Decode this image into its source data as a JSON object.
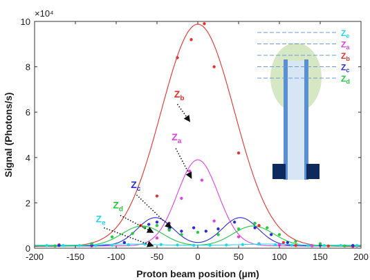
{
  "chart_data": {
    "type": "line",
    "xlabel": "Proton beam position (µm)",
    "ylabel": "Signal (Photons/s)",
    "y_exponent_label": "×10⁴",
    "xlim": [
      -200,
      200
    ],
    "ylim": [
      0,
      100000
    ],
    "x_ticks": [
      -200,
      -150,
      -100,
      -50,
      0,
      50,
      100,
      150,
      200
    ],
    "x_tick_labels": [
      "-200",
      "-150",
      "-100",
      "-50",
      "0",
      "50",
      "100",
      "150",
      "200"
    ],
    "y_ticks": [
      0,
      20000,
      40000,
      60000,
      80000,
      100000
    ],
    "y_tick_labels": [
      "0",
      "2",
      "4",
      "6",
      "8",
      "10"
    ],
    "grid": false,
    "series": [
      {
        "name": "Z_b",
        "label_main": "Z",
        "label_sub": "b",
        "color": "#e8302a",
        "fit": {
          "kind": "gauss",
          "mu": 0,
          "sigma": 45,
          "amp": 98000,
          "offset": 800
        },
        "points": [
          [
            -170,
            1500
          ],
          [
            -130,
            1200
          ],
          [
            -90,
            2500
          ],
          [
            -70,
            10000
          ],
          [
            -50,
            23000
          ],
          [
            -25,
            84000
          ],
          [
            -8,
            92000
          ],
          [
            8,
            99000
          ],
          [
            20,
            80000
          ],
          [
            50,
            42000
          ],
          [
            75,
            10000
          ],
          [
            105,
            2500
          ],
          [
            120,
            1200
          ],
          [
            160,
            1000
          ],
          [
            190,
            800
          ]
        ]
      },
      {
        "name": "Z_a",
        "label_main": "Z",
        "label_sub": "a",
        "color": "#e040e0",
        "fit": {
          "kind": "gauss",
          "mu": 0,
          "sigma": 25,
          "amp": 38000,
          "offset": 1000
        },
        "points": [
          [
            -175,
            1000
          ],
          [
            -130,
            1000
          ],
          [
            -85,
            1500
          ],
          [
            -50,
            4500
          ],
          [
            -35,
            11000
          ],
          [
            -20,
            22000
          ],
          [
            -10,
            34000
          ],
          [
            5,
            30000
          ],
          [
            20,
            12000
          ],
          [
            50,
            5000
          ],
          [
            75,
            2000
          ],
          [
            100,
            1500
          ],
          [
            140,
            1000
          ],
          [
            195,
            1000
          ]
        ]
      },
      {
        "name": "Z_c",
        "label_main": "Z",
        "label_sub": "c",
        "color": "#2a2ad6",
        "fit": {
          "kind": "double",
          "mu": 52,
          "sigma": 22,
          "amp": 12500,
          "offset": 1000
        },
        "points": [
          [
            -170,
            1200
          ],
          [
            -130,
            1300
          ],
          [
            -90,
            2500
          ],
          [
            -60,
            10500
          ],
          [
            -50,
            11500
          ],
          [
            -35,
            8500
          ],
          [
            -20,
            7500
          ],
          [
            -5,
            9000
          ],
          [
            10,
            7500
          ],
          [
            25,
            8500
          ],
          [
            45,
            11500
          ],
          [
            70,
            9000
          ],
          [
            90,
            6000
          ],
          [
            110,
            2500
          ],
          [
            150,
            1300
          ],
          [
            190,
            1200
          ]
        ]
      },
      {
        "name": "Z_d",
        "label_main": "Z",
        "label_sub": "d",
        "color": "#22c742",
        "fit": {
          "kind": "double",
          "mu": 68,
          "sigma": 25,
          "amp": 8800,
          "offset": 1000
        },
        "points": [
          [
            -175,
            1000
          ],
          [
            -130,
            2000
          ],
          [
            -105,
            5000
          ],
          [
            -80,
            6500
          ],
          [
            -65,
            9000
          ],
          [
            -50,
            10000
          ],
          [
            -35,
            8000
          ],
          [
            -20,
            6000
          ],
          [
            0,
            7000
          ],
          [
            25,
            6000
          ],
          [
            50,
            8500
          ],
          [
            70,
            11000
          ],
          [
            85,
            9000
          ],
          [
            100,
            6000
          ],
          [
            120,
            3000
          ],
          [
            150,
            2000
          ],
          [
            180,
            1000
          ]
        ]
      },
      {
        "name": "Z_e",
        "label_main": "Z",
        "label_sub": "e",
        "color": "#22d8e6",
        "fit": {
          "kind": "double",
          "mu": 85,
          "sigma": 30,
          "amp": 500,
          "offset": 1300
        },
        "points": [
          [
            -185,
            1200
          ],
          [
            -165,
            1200
          ],
          [
            -145,
            1200
          ],
          [
            -125,
            1200
          ],
          [
            -105,
            1300
          ],
          [
            -85,
            1500
          ],
          [
            -65,
            1800
          ],
          [
            -45,
            1600
          ],
          [
            -25,
            1400
          ],
          [
            -5,
            1300
          ],
          [
            15,
            1300
          ],
          [
            35,
            1400
          ],
          [
            55,
            1600
          ],
          [
            75,
            1800
          ],
          [
            95,
            1500
          ],
          [
            115,
            1300
          ],
          [
            135,
            1200
          ],
          [
            155,
            1200
          ],
          [
            175,
            1200
          ],
          [
            195,
            1200
          ]
        ]
      }
    ],
    "annotations": [
      {
        "series": "Z_b",
        "text_main": "Z",
        "text_sub": "b",
        "text_at": [
          -29,
          66500
        ],
        "arrow_from": [
          -25,
          63500
        ],
        "arrow_to": [
          -10,
          56000
        ],
        "color": "#e8302a"
      },
      {
        "series": "Z_a",
        "text_main": "Z",
        "text_sub": "a",
        "text_at": [
          -32,
          47500
        ],
        "arrow_from": [
          -27,
          44000
        ],
        "arrow_to": [
          -8,
          31000
        ],
        "color": "#e040e0"
      },
      {
        "series": "Z_c",
        "text_main": "Z",
        "text_sub": "c",
        "text_at": [
          -82,
          26500
        ],
        "arrow_from": [
          -75,
          23500
        ],
        "arrow_to": [
          -33,
          9000
        ],
        "color": "#2a2ad6"
      },
      {
        "series": "Z_d",
        "text_main": "Z",
        "text_sub": "d",
        "text_at": [
          -104,
          17500
        ],
        "arrow_from": [
          -95,
          14500
        ],
        "arrow_to": [
          -55,
          7000
        ],
        "color": "#22c742"
      },
      {
        "series": "Z_e",
        "text_main": "Z",
        "text_sub": "e",
        "text_at": [
          -125,
          11500
        ],
        "arrow_from": [
          -115,
          9000
        ],
        "arrow_to": [
          -55,
          1000
        ],
        "color": "#22d8e6"
      }
    ],
    "inset_legend": [
      {
        "main": "Z",
        "sub": "e",
        "color": "#22d8e6"
      },
      {
        "main": "Z",
        "sub": "a",
        "color": "#e040e0"
      },
      {
        "main": "Z",
        "sub": "b",
        "color": "#e8302a"
      },
      {
        "main": "Z",
        "sub": "c",
        "color": "#2a2ad6"
      },
      {
        "main": "Z",
        "sub": "d",
        "color": "#22c742"
      }
    ]
  }
}
